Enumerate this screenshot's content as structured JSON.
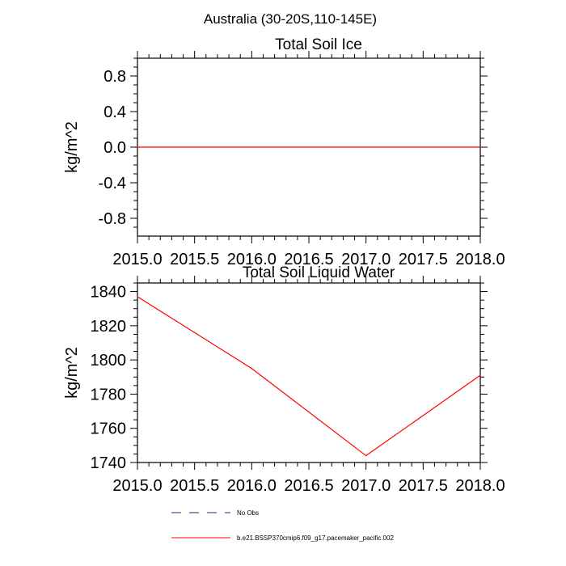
{
  "figure_title": "Australia (30-20S,110-145E)",
  "chart_data": [
    {
      "type": "line",
      "title": "Total Soil Ice",
      "xlabel": "",
      "ylabel": "kg/m^2",
      "xlim": [
        2015.0,
        2018.0
      ],
      "ylim": [
        -1.0,
        1.0
      ],
      "xticks": [
        "2015.0",
        "2015.5",
        "2016.0",
        "2016.5",
        "2017.0",
        "2017.5",
        "2018.0"
      ],
      "xtick_values": [
        2015.0,
        2015.5,
        2016.0,
        2016.5,
        2017.0,
        2017.5,
        2018.0
      ],
      "yticks": [
        "0.8",
        "0.4",
        "0.0",
        "-0.4",
        "-0.8"
      ],
      "ytick_values": [
        0.8,
        0.4,
        0.0,
        -0.4,
        -0.8
      ],
      "grid": false,
      "series": [
        {
          "name": "b.e21.BSSP370cmip6.f09_g17.pacemaker_pacific.002",
          "color": "#ff0000",
          "x": [
            2015.0,
            2016.0,
            2017.0,
            2018.0
          ],
          "values": [
            0.0,
            0.0,
            0.0,
            0.0
          ]
        }
      ]
    },
    {
      "type": "line",
      "title": "Total Soil Liquid Water",
      "xlabel": "",
      "ylabel": "kg/m^2",
      "xlim": [
        2015.0,
        2018.0
      ],
      "ylim": [
        1740,
        1845
      ],
      "xticks": [
        "2015.0",
        "2015.5",
        "2016.0",
        "2016.5",
        "2017.0",
        "2017.5",
        "2018.0"
      ],
      "xtick_values": [
        2015.0,
        2015.5,
        2016.0,
        2016.5,
        2017.0,
        2017.5,
        2018.0
      ],
      "yticks": [
        "1840",
        "1820",
        "1800",
        "1780",
        "1760",
        "1740"
      ],
      "ytick_values": [
        1840,
        1820,
        1800,
        1780,
        1760,
        1740
      ],
      "grid": false,
      "series": [
        {
          "name": "b.e21.BSSP370cmip6.f09_g17.pacemaker_pacific.002",
          "color": "#ff0000",
          "x": [
            2015.0,
            2016.0,
            2017.0,
            2018.0
          ],
          "values": [
            1837,
            1795,
            1744,
            1791
          ]
        }
      ]
    }
  ],
  "legend": {
    "placement": "bottom",
    "entries": [
      {
        "label": "No Obs",
        "color": "#1f2a8a",
        "dash": true
      },
      {
        "label": "b.e21.BSSP370cmip6.f09_g17.pacemaker_pacific.002",
        "color": "#ff0000",
        "dash": false
      }
    ]
  }
}
